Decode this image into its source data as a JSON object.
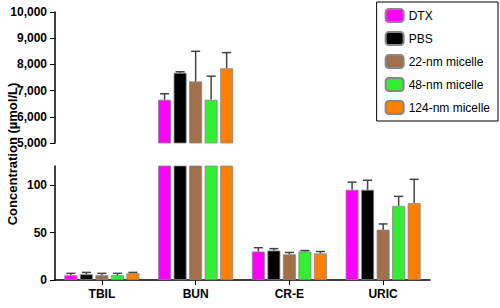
{
  "chart_data": {
    "type": "bar",
    "ylabel": "Concentration (µmol/L)",
    "categories": [
      "TBIL",
      "BUN",
      "CR-E",
      "URIC"
    ],
    "series": [
      {
        "name": "DTX",
        "color": "#ff00ff",
        "values": [
          5,
          6650,
          30,
          95
        ],
        "errors": [
          2,
          230,
          4,
          8
        ]
      },
      {
        "name": "PBS",
        "color": "#000000",
        "values": [
          6,
          7680,
          31,
          95
        ],
        "errors": [
          2,
          40,
          2,
          10
        ]
      },
      {
        "name": "22-nm micelle",
        "color": "#a0704a",
        "values": [
          5,
          7350,
          27,
          53
        ],
        "errors": [
          2,
          1150,
          2,
          6
        ]
      },
      {
        "name": "48-nm micelle",
        "color": "#33ee33",
        "values": [
          5,
          6650,
          30,
          78
        ],
        "errors": [
          2,
          900,
          1,
          10
        ]
      },
      {
        "name": "124-nm micelle",
        "color": "#ff7f00",
        "values": [
          7,
          7850,
          28,
          81
        ],
        "errors": [
          1,
          600,
          2,
          25
        ]
      }
    ],
    "ylim": [
      [
        0,
        120
      ],
      [
        5000,
        10000
      ]
    ],
    "yticks": [
      [
        0,
        50,
        100
      ],
      [
        {
          "value": 5000,
          "label": "5,000"
        },
        {
          "value": 6000,
          "label": "6,000"
        },
        {
          "value": 7000,
          "label": "7,000"
        },
        {
          "value": 8000,
          "label": "8,000"
        },
        {
          "value": 9000,
          "label": "9,000"
        },
        {
          "value": 10000,
          "label": "10,000"
        }
      ]
    ],
    "legend": "upper right",
    "grid": false
  }
}
